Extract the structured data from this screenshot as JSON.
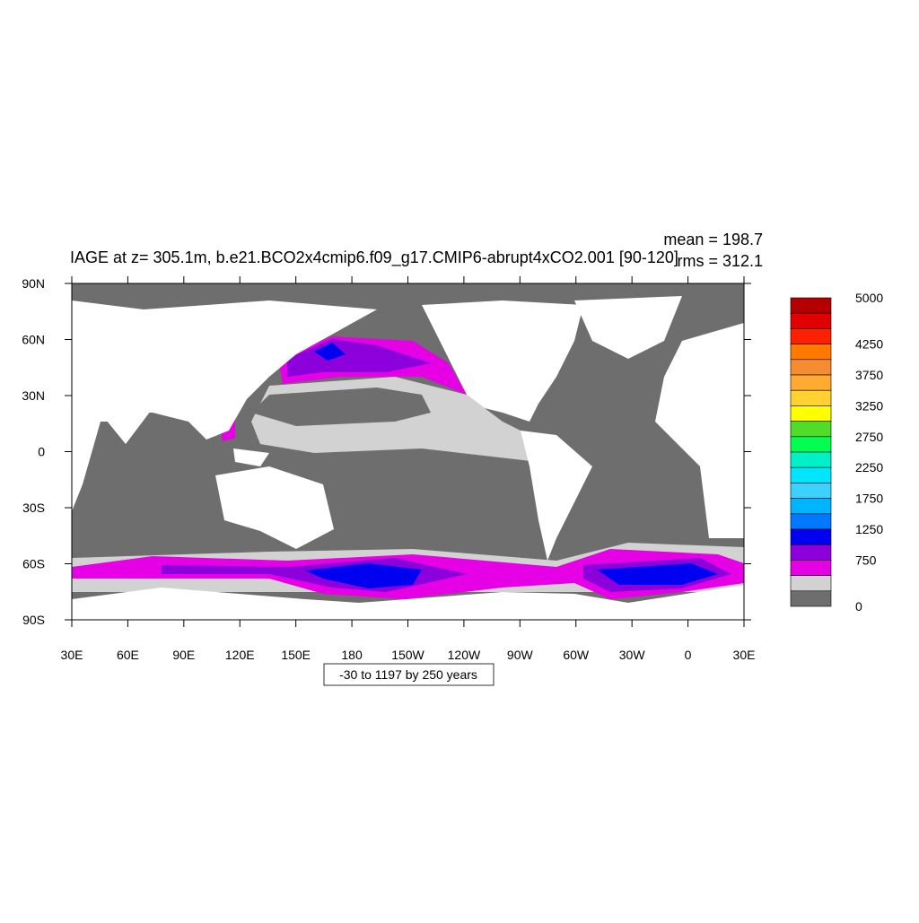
{
  "title": "IAGE at z= 305.1m, b.e21.BCO2x4cmip6.f09_g17.CMIP6-abrupt4xCO2.001 [90-120]",
  "mean": "mean = 198.7",
  "rms": "rms = 312.1",
  "info_label": "-30 to 1197 by 250 years",
  "x_labels": [
    "30E",
    "60E",
    "90E",
    "120E",
    "150E",
    "180",
    "150W",
    "120W",
    "90W",
    "60W",
    "30W",
    "0",
    "30E"
  ],
  "y_labels": [
    "90N",
    "60N",
    "30N",
    "0",
    "30S",
    "60S",
    "90S"
  ],
  "colorbar": {
    "colors": [
      "#b40000",
      "#e00000",
      "#ff2000",
      "#ff7800",
      "#f58c32",
      "#ffaa32",
      "#ffd232",
      "#ffff00",
      "#50dc28",
      "#00ff50",
      "#00f0c8",
      "#00e6ff",
      "#3cd2ff",
      "#00b4ff",
      "#0078ff",
      "#0000f0",
      "#8c00dc",
      "#e600e6",
      "#d2d2d2",
      "#6e6e6e"
    ],
    "labels": [
      5000,
      4250,
      3750,
      3250,
      2750,
      2250,
      1750,
      1250,
      750,
      0
    ]
  }
}
